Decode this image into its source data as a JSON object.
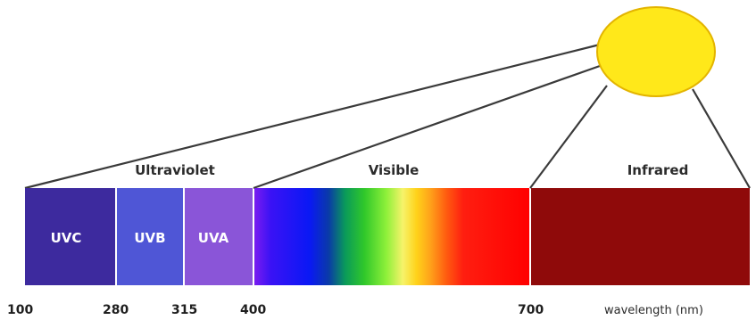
{
  "regions": {
    "ultraviolet": "Ultraviolet",
    "visible": "Visible",
    "infrared": "Infrared"
  },
  "bands": {
    "uvc": "UVC",
    "uvb": "UVB",
    "uva": "UVA"
  },
  "ticks": [
    "100",
    "280",
    "315",
    "400",
    "700"
  ],
  "axis_unit": "wavelength (nm)",
  "colors": {
    "uvc": "#3d2a9e",
    "uvb": "#4f56d6",
    "uva": "#8a55d8",
    "infrared": "#8f0a0a",
    "sun_fill": "#ffe81a",
    "sun_stroke": "#e3b400",
    "visible_gradient": [
      "#7a1cf0",
      "#3a12f5",
      "#0a18f5",
      "#0a3aa8",
      "#0a9a5a",
      "#30c82a",
      "#8ef03a",
      "#f6f36a",
      "#ffd21a",
      "#ffa21a",
      "#ff5a10",
      "#ff1e10",
      "#ff0000"
    ]
  }
}
